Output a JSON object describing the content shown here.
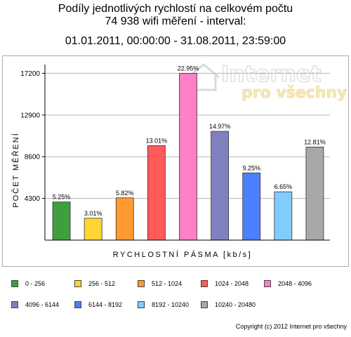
{
  "title": {
    "line1": "Podíly jednotlivých rychlostí na celkovém počtu",
    "line2": "74 938 wifi měření - interval:",
    "line3": "01.01.2011, 00:00:00 - 31.08.2011, 23:59:00"
  },
  "watermark": {
    "line1": "Internet",
    "line2": "pro všechny"
  },
  "copyright": "Copyright (c) 2012 Internet pro všechny",
  "chart_data": {
    "type": "bar",
    "xlabel": "RYCHLOSTNÍ PÁSMA [kb/s]",
    "ylabel": "POČET MĚŘENÍ",
    "ylim": [
      0,
      18100
    ],
    "yticks": [
      4300,
      8600,
      12900,
      17200
    ],
    "tick_labels": [
      "4300",
      "8600",
      "12900",
      "17200"
    ],
    "grid": true,
    "legend_position": "bottom",
    "categories": [
      "0 - 256",
      "256 - 512",
      "512 - 1024",
      "1024 - 2048",
      "2048 - 4096",
      "4096 - 6144",
      "6144 - 8192",
      "8192 - 10240",
      "10240 - 20480"
    ],
    "values": [
      3934,
      2256,
      4361,
      9749,
      17201,
      11218,
      6932,
      4983,
      9600
    ],
    "labels": [
      "5.25%",
      "3.01%",
      "5.82%",
      "13.01%",
      "22.95%",
      "14.97%",
      "9.25%",
      "6.65%",
      "12.81%"
    ],
    "colors": [
      "#3f9e3f",
      "#ffd633",
      "#ff9933",
      "#ff5959",
      "#ff80c4",
      "#8080c0",
      "#4d7fff",
      "#80ccff",
      "#a8a8a8"
    ]
  }
}
